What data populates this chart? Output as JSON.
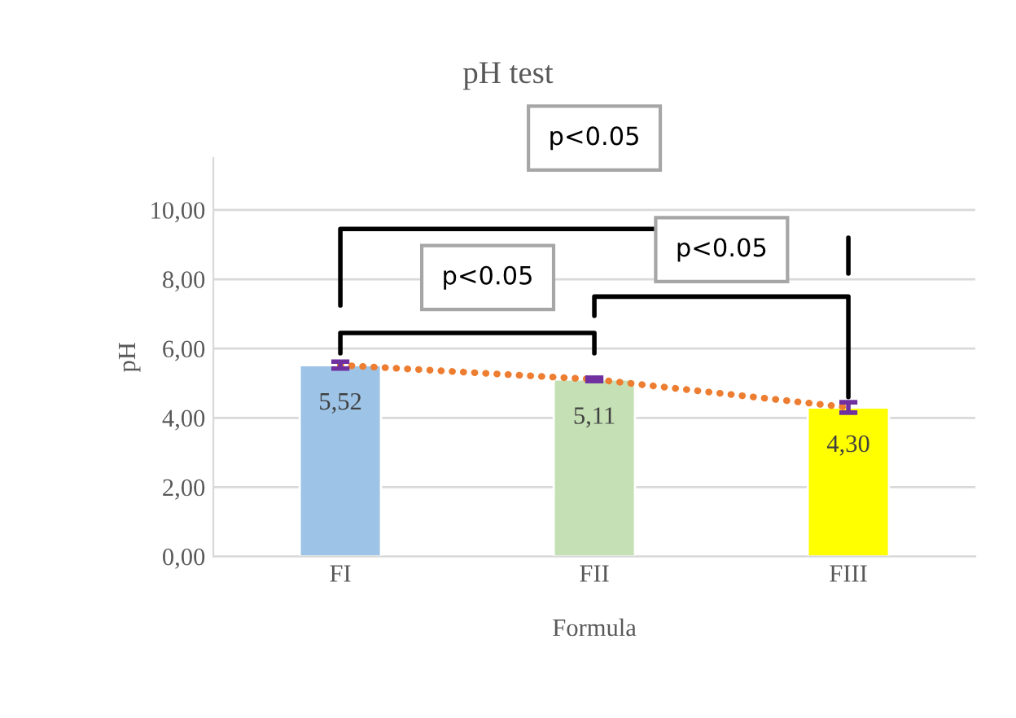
{
  "chart_data": {
    "type": "bar",
    "title": "pH test",
    "xlabel": "Formula",
    "ylabel": "pH",
    "categories": [
      "FI",
      "FII",
      "FIII"
    ],
    "series": [
      {
        "type": "bar",
        "colors": [
          "#9dc3e6",
          "#c5e0b4",
          "#ffff00"
        ],
        "values": [
          5.52,
          5.11,
          4.3
        ],
        "errors": [
          0.1,
          0.05,
          0.15
        ],
        "value_labels": [
          "5,52",
          "5,11",
          "4,30"
        ]
      },
      {
        "type": "line",
        "color": "#ed7d31",
        "values": [
          5.52,
          5.11,
          4.3
        ],
        "line_style": "dotted",
        "marker": "none"
      }
    ],
    "ylim": [
      0,
      11.5
    ],
    "yticks": [
      {
        "value": 0,
        "label": "0,00"
      },
      {
        "value": 2,
        "label": "2,00"
      },
      {
        "value": 4,
        "label": "4,00"
      },
      {
        "value": 6,
        "label": "6,00"
      },
      {
        "value": 8,
        "label": "8,00"
      },
      {
        "value": 10,
        "label": "10,00"
      }
    ],
    "grid": "y",
    "legend": false,
    "annotations": [
      "p<0.05",
      "p<0.05",
      "p<0.05"
    ]
  }
}
